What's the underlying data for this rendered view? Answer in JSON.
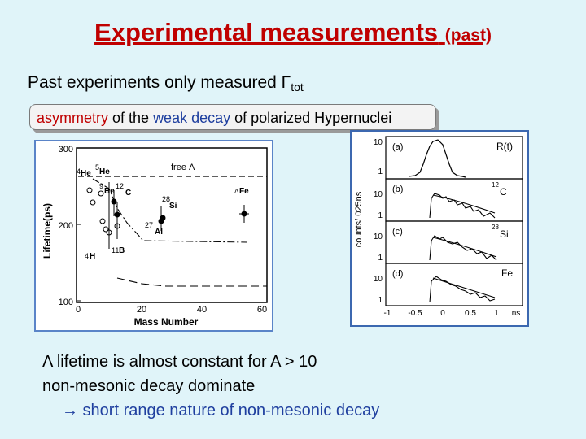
{
  "slide": {
    "title_main": "Experimental measurements",
    "title_small": "(past)",
    "line1_text": "Past experiments only measured Γ",
    "line1_sub": "tot",
    "callout": {
      "w1": "asymmetry",
      "w2": " of the ",
      "w3": "weak decay",
      "w4": " of polarized Hypernuclei"
    },
    "bullet1": "Λ lifetime is almost constant for A > 10",
    "bullet2": "non-mesonic decay dominate",
    "bullet3_arrow": "→",
    "bullet3": " short range nature of non-mesonic decay",
    "colors": {
      "title": "#c00000",
      "background": "#e0f4f9",
      "accent_blue": "#1f3f9f"
    }
  },
  "left_figure": {
    "ylabel": "Lifetime(ps)",
    "xlabel": "Mass Number",
    "yticks": [
      "300",
      "200",
      "100"
    ],
    "xticks": [
      "0",
      "20",
      "40",
      "60"
    ],
    "free_label": "free Λ",
    "labels": {
      "he4": "He",
      "he5": "He",
      "be": "Be",
      "c": "C",
      "si": "Si",
      "al": "Al",
      "fe": "Fe",
      "h": "H",
      "b": "B"
    },
    "superscripts": {
      "he4": "4",
      "he5": "5",
      "be": "9",
      "c": "12",
      "si": "28",
      "al": "27",
      "fe": "Λ",
      "h": "4",
      "b": "11"
    }
  },
  "right_figure": {
    "ylabel": "counts/ 025ns",
    "xlabel": "ns",
    "xticks": [
      "-1",
      "-0.5",
      "0",
      "0.5",
      "1"
    ],
    "panels": [
      {
        "tag": "(a)",
        "name": "R(t)",
        "sup": "",
        "ticks": [
          "10",
          "1"
        ]
      },
      {
        "tag": "(b)",
        "name": "C",
        "sup": "12",
        "ticks": [
          "10",
          "1"
        ]
      },
      {
        "tag": "(c)",
        "name": "Si",
        "sup": "28",
        "ticks": [
          "10",
          "1"
        ]
      },
      {
        "tag": "(d)",
        "name": "Fe",
        "sup": "",
        "ticks": [
          "10",
          "1"
        ]
      }
    ]
  }
}
